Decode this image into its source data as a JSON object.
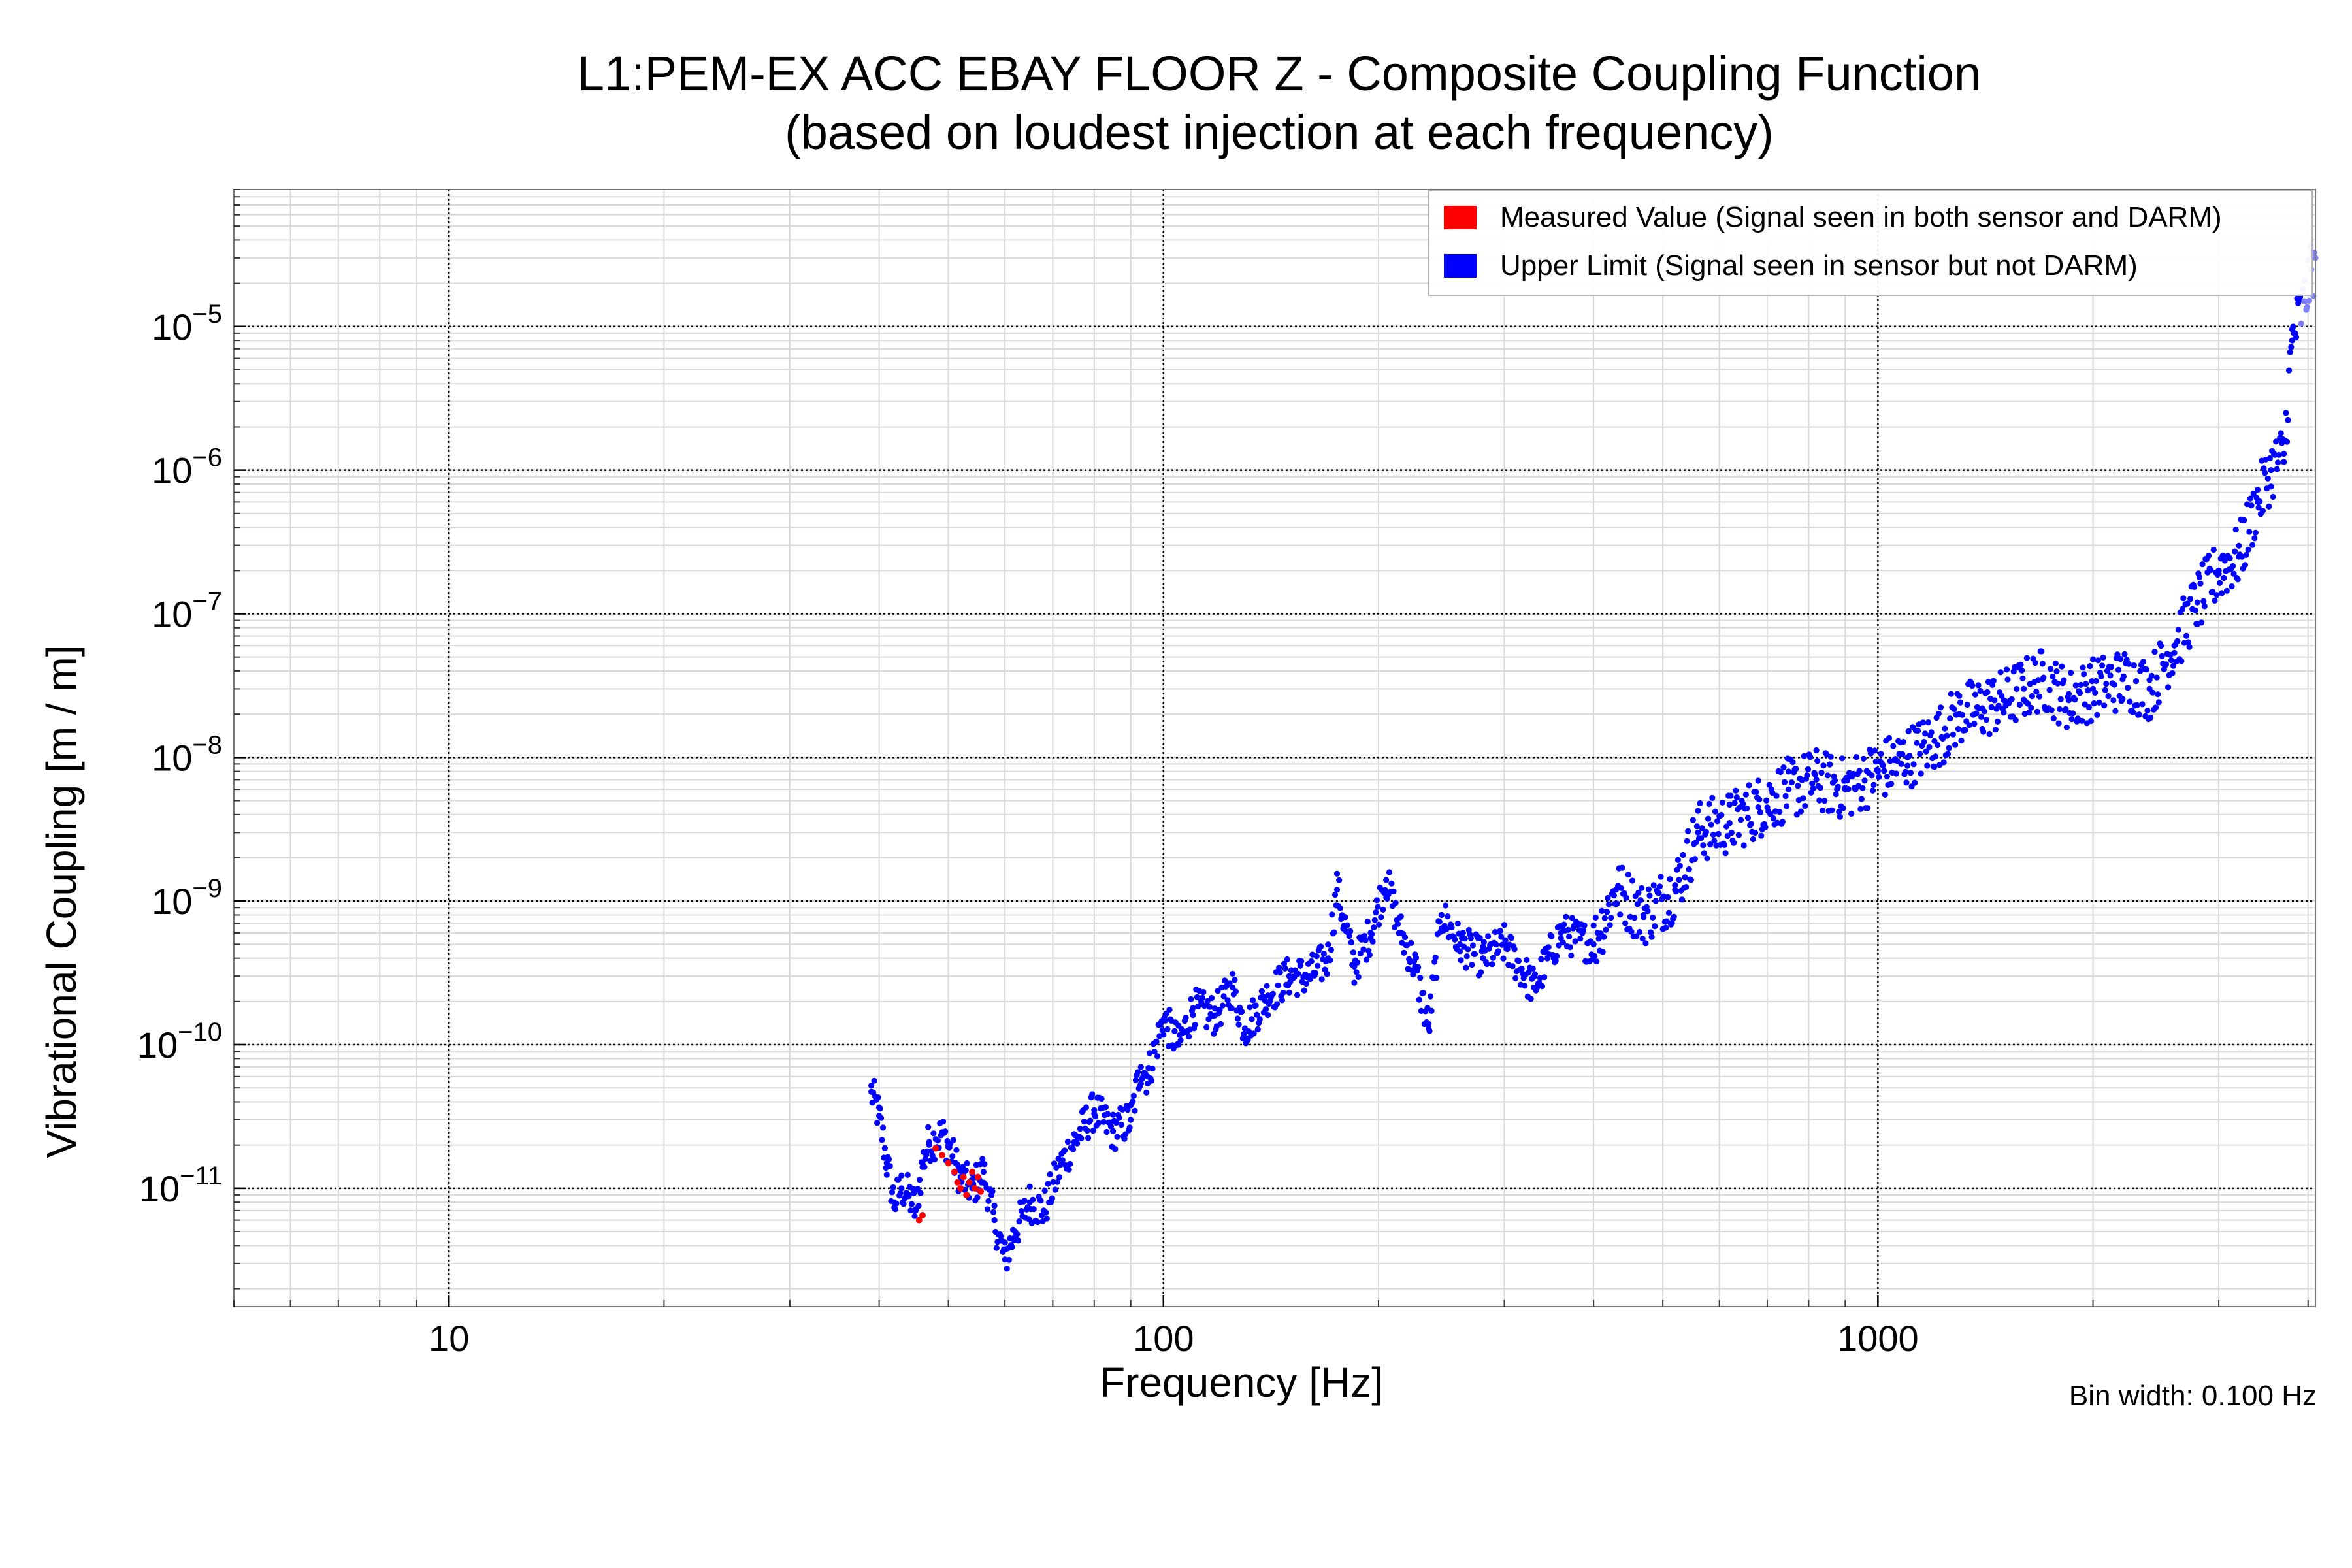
{
  "title_line1": "L1:PEM-EX ACC EBAY FLOOR Z - Composite Coupling Function",
  "title_line2": "(based on loudest injection at each frequency)",
  "bin_note": "Bin width: 0.100 Hz",
  "colors": {
    "measured": "#ff0000",
    "upper_limit": "#0000ff",
    "upper_limit_light": "#8080ff",
    "grid_major": "#000000",
    "grid_minor": "#d9d9d9"
  },
  "chart_data": {
    "type": "scatter",
    "title": "L1:PEM-EX ACC EBAY FLOOR Z - Composite Coupling Function (based on loudest injection at each frequency)",
    "xlabel": "Frequency [Hz]",
    "ylabel": "Vibrational Coupling [m / m]",
    "xscale": "log",
    "yscale": "log",
    "xlim": [
      5,
      4096
    ],
    "ylim": [
      1.5e-12,
      9e-05
    ],
    "x_ticks": [
      {
        "value": 10,
        "label": "10"
      },
      {
        "value": 100,
        "label": "100"
      },
      {
        "value": 1000,
        "label": "1000"
      }
    ],
    "y_ticks": [
      {
        "value": 1e-11,
        "exp": "−11"
      },
      {
        "value": 1e-10,
        "exp": "−10"
      },
      {
        "value": 1e-09,
        "exp": "−9"
      },
      {
        "value": 1e-08,
        "exp": "−8"
      },
      {
        "value": 1e-07,
        "exp": "−7"
      },
      {
        "value": 1e-06,
        "exp": "−6"
      },
      {
        "value": 1e-05,
        "exp": "−5"
      }
    ],
    "grid": true,
    "legend_position": "top-right",
    "series": [
      {
        "name": "Measured Value (Signal seen in both sensor and DARM)",
        "color": "#ff0000",
        "points": [
          [
            45.5,
            6e-12
          ],
          [
            46.0,
            6.5e-12
          ],
          [
            48.0,
            1.9e-11
          ],
          [
            49.0,
            1.7e-11
          ],
          [
            50.0,
            1.5e-11
          ],
          [
            51.0,
            1.3e-11
          ],
          [
            51.5,
            1.1e-11
          ],
          [
            52.0,
            1e-11
          ],
          [
            52.5,
            1.2e-11
          ],
          [
            53.0,
            9e-12
          ],
          [
            53.5,
            1.1e-11
          ],
          [
            54.0,
            1.3e-11
          ],
          [
            54.5,
            1e-11
          ],
          [
            55.0,
            1.2e-11
          ],
          [
            55.5,
            9.5e-12
          ]
        ]
      },
      {
        "name": "Upper Limit (Signal seen in sensor but not DARM)",
        "color": "#0000ff",
        "anchors": [
          [
            39.0,
            4.7e-11
          ],
          [
            40.0,
            3.2e-11
          ],
          [
            41.0,
            1.5e-11
          ],
          [
            42.0,
            8e-12
          ],
          [
            43.0,
            1e-11
          ],
          [
            44.0,
            9e-12
          ],
          [
            45.0,
            7e-12
          ],
          [
            46.0,
            1.5e-11
          ],
          [
            47.0,
            2.1e-11
          ],
          [
            48.0,
            2.2e-11
          ],
          [
            49.0,
            2.4e-11
          ],
          [
            50.0,
            2e-11
          ],
          [
            52.0,
            1.2e-11
          ],
          [
            54.0,
            1e-11
          ],
          [
            56.0,
            1.3e-11
          ],
          [
            58.0,
            6e-12
          ],
          [
            60.0,
            3.2e-12
          ],
          [
            62.0,
            5e-12
          ],
          [
            65.0,
            8e-12
          ],
          [
            68.0,
            7e-12
          ],
          [
            72.0,
            1.5e-11
          ],
          [
            75.0,
            2.1e-11
          ],
          [
            80.0,
            3.5e-11
          ],
          [
            85.0,
            2.5e-11
          ],
          [
            90.0,
            3e-11
          ],
          [
            93.0,
            7e-11
          ],
          [
            95.0,
            6e-11
          ],
          [
            100.0,
            1.5e-10
          ],
          [
            105.0,
            1e-10
          ],
          [
            110.0,
            1.8e-10
          ],
          [
            118.0,
            1.6e-10
          ],
          [
            125.0,
            2.5e-10
          ],
          [
            130.0,
            1.3e-10
          ],
          [
            140.0,
            2.2e-10
          ],
          [
            150.0,
            3e-10
          ],
          [
            160.0,
            3e-10
          ],
          [
            170.0,
            4e-10
          ],
          [
            175.0,
            1.2e-09
          ],
          [
            185.0,
            3.5e-10
          ],
          [
            195.0,
            6e-10
          ],
          [
            205.0,
            1.4e-09
          ],
          [
            215.0,
            6e-10
          ],
          [
            225.0,
            3.5e-10
          ],
          [
            235.0,
            1.3e-10
          ],
          [
            245.0,
            8e-10
          ],
          [
            260.0,
            5e-10
          ],
          [
            280.0,
            4e-10
          ],
          [
            300.0,
            5e-10
          ],
          [
            330.0,
            2.5e-10
          ],
          [
            360.0,
            6e-10
          ],
          [
            400.0,
            5e-10
          ],
          [
            430.0,
            1.2e-09
          ],
          [
            470.0,
            8e-10
          ],
          [
            520.0,
            1.2e-09
          ],
          [
            560.0,
            3e-09
          ],
          [
            620.0,
            3.5e-09
          ],
          [
            680.0,
            4.5e-09
          ],
          [
            750.0,
            6e-09
          ],
          [
            820.0,
            7e-09
          ],
          [
            900.0,
            6e-09
          ],
          [
            1000.0,
            8e-09
          ],
          [
            1100.0,
            1e-08
          ],
          [
            1200.0,
            1.3e-08
          ],
          [
            1300.0,
            2e-08
          ],
          [
            1400.0,
            2.2e-08
          ],
          [
            1500.0,
            2.5e-08
          ],
          [
            1600.0,
            3e-08
          ],
          [
            1700.0,
            3.5e-08
          ],
          [
            1850.0,
            2.5e-08
          ],
          [
            2000.0,
            3e-08
          ],
          [
            2200.0,
            3.5e-08
          ],
          [
            2400.0,
            3e-08
          ],
          [
            2600.0,
            6e-08
          ],
          [
            2800.0,
            1.2e-07
          ],
          [
            3000.0,
            2e-07
          ],
          [
            3200.0,
            2.5e-07
          ],
          [
            3400.0,
            6e-07
          ],
          [
            3550.0,
            1e-06
          ],
          [
            3700.0,
            1.3e-06
          ],
          [
            3800.0,
            8e-06
          ],
          [
            3950.0,
            1.5e-05
          ],
          [
            4096.0,
            3e-05
          ]
        ]
      }
    ]
  },
  "legend": {
    "measured_label": "Measured Value (Signal seen in both sensor and DARM)",
    "upper_label": "Upper Limit (Signal seen in sensor but not DARM)"
  }
}
